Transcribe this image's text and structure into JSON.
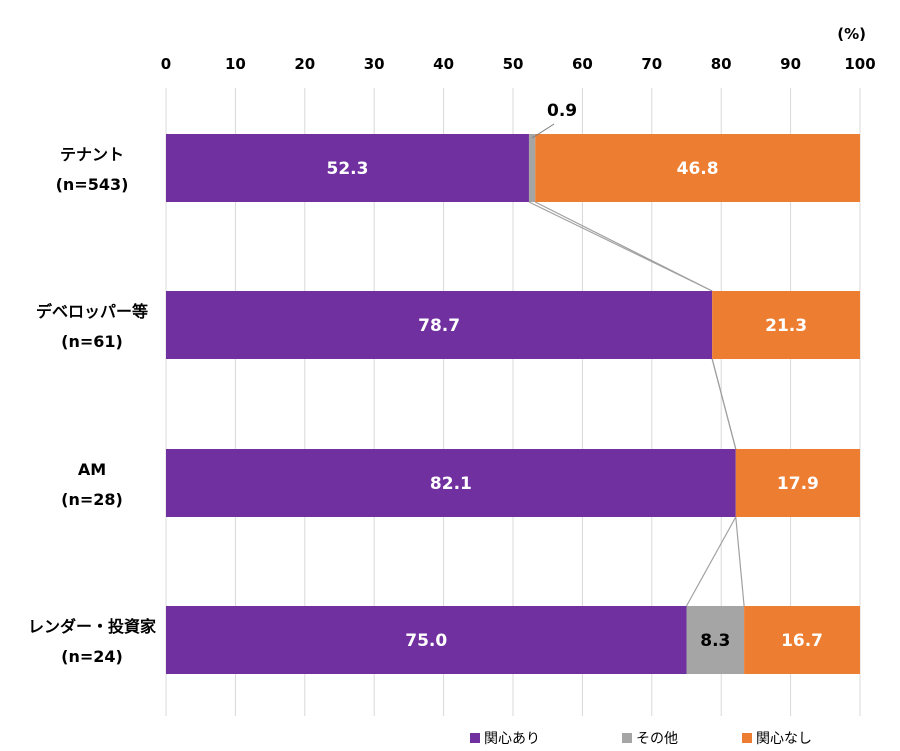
{
  "chart_data": {
    "type": "bar",
    "orientation": "horizontal",
    "stacked": true,
    "unit_label": "(%)",
    "xlim": [
      0,
      100
    ],
    "x_ticks": [
      0,
      10,
      20,
      30,
      40,
      50,
      60,
      70,
      80,
      90,
      100
    ],
    "grid": true,
    "legend_position": "bottom-right",
    "categories": [
      {
        "line1": "テナント",
        "line2": "(n=543)"
      },
      {
        "line1": "デベロッパー等",
        "line2": "(n=61)"
      },
      {
        "line1": "AM",
        "line2": "(n=28)"
      },
      {
        "line1": "レンダー・投資家",
        "line2": "(n=24)"
      }
    ],
    "series": [
      {
        "name": "関心あり",
        "color": "#7030A0",
        "label_color": "#ffffff",
        "values": [
          52.3,
          78.7,
          82.1,
          75.0
        ],
        "labels": [
          "52.3",
          "78.7",
          "82.1",
          "75.0"
        ]
      },
      {
        "name": "その他",
        "color": "#A5A5A5",
        "label_color": "#000000",
        "values": [
          0.9,
          0,
          0,
          8.3
        ],
        "labels": [
          "0.9",
          "",
          "",
          "8.3"
        ]
      },
      {
        "name": "関心なし",
        "color": "#ED7D31",
        "label_color": "#ffffff",
        "values": [
          46.8,
          21.3,
          17.9,
          16.7
        ],
        "labels": [
          "46.8",
          "21.3",
          "17.9",
          "16.7"
        ]
      }
    ],
    "series_lines": true
  }
}
